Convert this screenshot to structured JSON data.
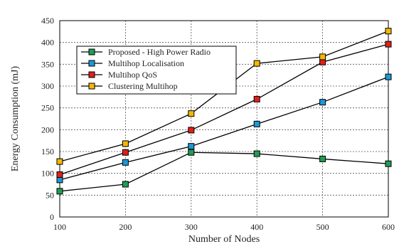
{
  "chart_data": {
    "type": "line",
    "title": "",
    "xlabel": "Number of Nodes",
    "ylabel": "Energy Consumption (mJ)",
    "x": [
      100,
      200,
      300,
      400,
      500,
      600
    ],
    "xlim": [
      100,
      600
    ],
    "ylim": [
      0,
      450
    ],
    "xticks": [
      "100",
      "200",
      "300",
      "400",
      "500",
      "600"
    ],
    "yticks": [
      "0",
      "50",
      "100",
      "150",
      "200",
      "250",
      "300",
      "350",
      "400",
      "450"
    ],
    "grid": true,
    "legend_position": "top-left",
    "series": [
      {
        "name": "Proposed - High Power Radio",
        "color": "#1f9d55",
        "values": [
          59,
          75,
          148,
          145,
          133,
          122
        ]
      },
      {
        "name": "Multihop Localisation",
        "color": "#1a9ad6",
        "values": [
          85,
          125,
          162,
          213,
          263,
          321
        ]
      },
      {
        "name": "Multihop QoS",
        "color": "#e0201b",
        "values": [
          97,
          148,
          199,
          270,
          355,
          396
        ]
      },
      {
        "name": "Clustering Multihop",
        "color": "#f5b800",
        "values": [
          127,
          168,
          237,
          352,
          367,
          426
        ]
      }
    ]
  }
}
